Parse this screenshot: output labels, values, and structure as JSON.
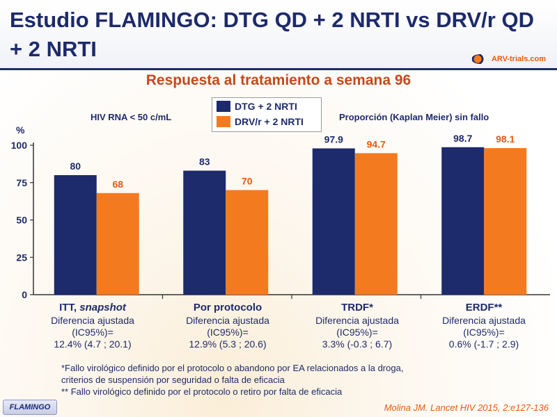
{
  "title": "Estudio FLAMINGO: DTG QD + 2 NRTI vs DRV/r QD + 2 NRTI",
  "logo_text": "ARV-trials.com",
  "subtitle": "Respuesta al tratamiento a semana 96",
  "note_left": "HIV RNA < 50 c/mL",
  "note_right": "Proporción  (Kaplan Meier) sin fallo",
  "colors": {
    "dtg": "#1d2a6b",
    "drv": "#f47a20",
    "navy": "#1d2a6b",
    "orange": "#e85a0c"
  },
  "chart_data": {
    "type": "bar",
    "ylabel": "%",
    "ylim": [
      0,
      100
    ],
    "yticks": [
      0,
      25,
      50,
      75,
      100
    ],
    "categories": [
      "ITT, snapshot",
      "Por protocolo",
      "TRDF*",
      "ERDF**"
    ],
    "series": [
      {
        "name": "DTG + 2 NRTI",
        "values": [
          80,
          83,
          97.9,
          98.7
        ],
        "labels": [
          "80",
          "83",
          "97.9",
          "98.7"
        ]
      },
      {
        "name": "DRV/r + 2 NRTI",
        "values": [
          68,
          70,
          94.7,
          98.1
        ],
        "labels": [
          "68",
          "70",
          "94.7",
          "98.1"
        ]
      }
    ]
  },
  "groups": [
    {
      "name_main": "ITT, ",
      "name_italic": "snapshot",
      "line1": "Diferencia ajustada",
      "line2": "(IC95%)=",
      "line3": "12.4% (4.7 ; 20.1)"
    },
    {
      "name_main": "Por protocolo",
      "name_italic": "",
      "line1": "Diferencia ajustada",
      "line2": "(IC95%)=",
      "line3": "12.9% (5.3 ; 20.6)"
    },
    {
      "name_main": "TRDF*",
      "name_italic": "",
      "line1": "Diferencia ajustada",
      "line2": "(IC95%)=",
      "line3": "3.3% (-0.3 ; 6.7)"
    },
    {
      "name_main": "ERDF**",
      "name_italic": "",
      "line1": "Diferencia ajustada",
      "line2": "(IC95%)=",
      "line3": "0.6% (-1.7 ; 2.9)"
    }
  ],
  "footnotes": {
    "f1": "*Fallo virológico definido por el protocolo o abandono por EA relacionados a la droga,",
    "f2": "criterios de suspensión por seguridad o falta de eficacia",
    "f3": "** Fallo virológico definido por el protocolo o retiro por falta de eficacia"
  },
  "badge": "FLAMINGO",
  "reference": "Molina JM. Lancet HIV 2015, 2:e127-136"
}
